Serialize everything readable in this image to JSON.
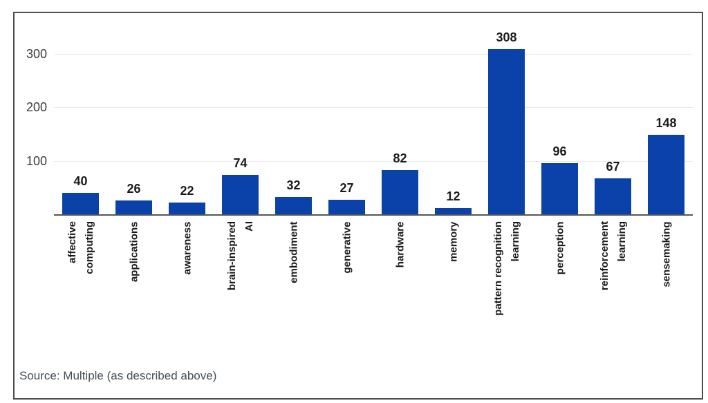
{
  "chart_data": {
    "type": "bar",
    "title": "",
    "xlabel": "",
    "ylabel": "",
    "categories": [
      "affective computing",
      "applications",
      "awareness",
      "brain-inspired AI",
      "embodiment",
      "generative",
      "hardware",
      "memory",
      "pattern recognition learning",
      "perception",
      "reinforcement learning",
      "sensemaking"
    ],
    "category_lines": [
      [
        "affective",
        "computing"
      ],
      [
        "applications"
      ],
      [
        "awareness"
      ],
      [
        "brain-inspired",
        "AI"
      ],
      [
        "embodiment"
      ],
      [
        "generative"
      ],
      [
        "hardware"
      ],
      [
        "memory"
      ],
      [
        "pattern recognition",
        "learning"
      ],
      [
        "perception"
      ],
      [
        "reinforcement",
        "learning"
      ],
      [
        "sensemaking"
      ]
    ],
    "values": [
      40,
      26,
      22,
      74,
      32,
      27,
      82,
      12,
      308,
      96,
      67,
      148
    ],
    "yticks": [
      100,
      200,
      300
    ],
    "ylim": [
      0,
      375
    ],
    "grid": true,
    "legend_position": "none",
    "source_note": "Source: Multiple (as described above)",
    "colors": {
      "bar": "#0b42a9",
      "gridline": "#eaeaea",
      "axis_line": "#55565a",
      "tick_label": "#3c3c3c",
      "value_label": "#1b1b1b",
      "category_label": "#1a1a1a",
      "source_text": "#424e57",
      "frame_border": "#4d4d4d",
      "background": "#ffffff"
    }
  }
}
